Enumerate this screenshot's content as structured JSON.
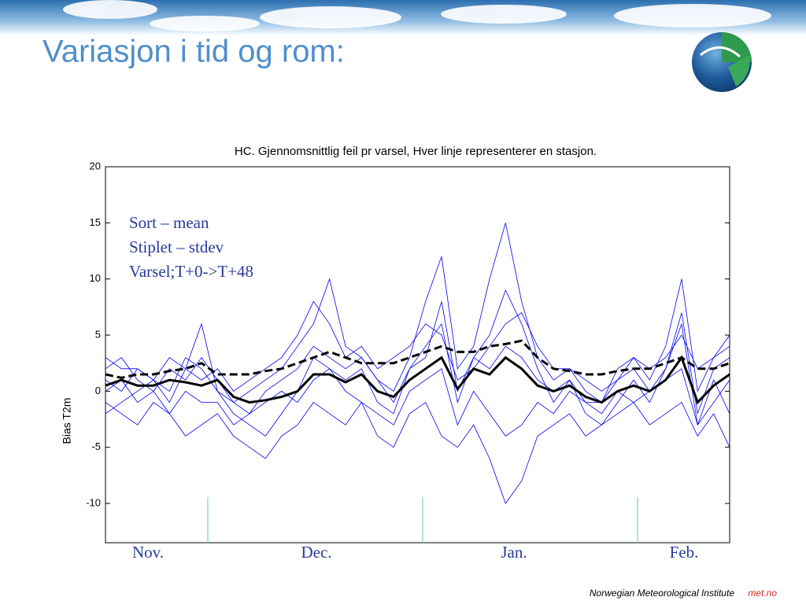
{
  "slide_title": "Variasjon i tid og rom:",
  "footer": {
    "institute": "Norwegian Meteorological Institute",
    "site": "met.no"
  },
  "chart_data": {
    "type": "line",
    "title": "HC. Gjennomsnittlig feil pr varsel, Hver linje representerer en stasjon.",
    "y_label": "Bias T2m",
    "annotations": [
      "Sort – mean",
      "Stiplet – stdev",
      "Varsel;T+0->T+48"
    ],
    "month_labels": [
      "Nov.",
      "Dec.",
      "Jan.",
      "Feb."
    ],
    "categories": [
      null,
      null,
      null,
      null,
      null,
      null,
      null,
      null,
      null,
      null,
      null,
      null,
      null,
      null,
      null,
      null,
      null,
      null,
      null,
      null,
      null,
      null,
      null,
      null,
      null,
      null,
      null,
      null,
      null,
      null,
      null,
      null,
      null,
      null,
      null,
      null,
      null,
      null,
      null,
      null
    ],
    "ylim": [
      -13.5,
      20
    ],
    "yticks": [
      -10,
      -5,
      0,
      5,
      10,
      15,
      20
    ],
    "series": [
      {
        "color": "#0000ee",
        "values": [
          -2,
          -1,
          0,
          1,
          -1,
          2,
          6,
          0,
          -2,
          -3,
          -4,
          -2,
          0,
          3,
          2,
          1,
          2,
          -1,
          -2,
          2,
          4,
          6,
          -1,
          3,
          5,
          9,
          6,
          2,
          -1,
          1,
          -2,
          -3,
          -1,
          1,
          -1,
          2,
          6,
          -3,
          1,
          -2
        ]
      },
      {
        "color": "#0000ee",
        "values": [
          2,
          3,
          1,
          0,
          2,
          1,
          3,
          1,
          -1,
          0,
          1,
          2,
          4,
          6,
          10,
          4,
          3,
          1,
          0,
          3,
          8,
          12,
          2,
          4,
          10,
          15,
          8,
          3,
          1,
          2,
          0,
          -1,
          2,
          3,
          1,
          4,
          10,
          0,
          3,
          4
        ]
      },
      {
        "color": "#0000ee",
        "values": [
          -1,
          -2,
          -3,
          -1,
          -2,
          -4,
          -3,
          -2,
          -4,
          -5,
          -6,
          -4,
          -3,
          -1,
          -2,
          -3,
          -1,
          -4,
          -5,
          -2,
          -1,
          -4,
          -5,
          -3,
          -6,
          -10,
          -8,
          -4,
          -3,
          -2,
          -4,
          -3,
          -2,
          -1,
          -3,
          -2,
          -1,
          -4,
          -2,
          -5
        ]
      },
      {
        "color": "#0000ee",
        "values": [
          3,
          2,
          2,
          1,
          3,
          2,
          1,
          2,
          0,
          1,
          2,
          3,
          5,
          8,
          6,
          3,
          4,
          2,
          3,
          4,
          6,
          5,
          1,
          2,
          4,
          6,
          7,
          4,
          2,
          2,
          1,
          0,
          1,
          3,
          2,
          3,
          5,
          2,
          3,
          5
        ]
      },
      {
        "color": "#0000ee",
        "values": [
          0,
          1,
          -1,
          0,
          -2,
          0,
          -1,
          -1,
          -3,
          -2,
          -1,
          0,
          -1,
          1,
          2,
          0,
          -1,
          -2,
          -3,
          0,
          1,
          2,
          -3,
          0,
          -2,
          -4,
          -3,
          -1,
          -2,
          0,
          -1,
          -2,
          0,
          -1,
          0,
          1,
          2,
          -3,
          -1,
          1
        ]
      },
      {
        "color": "#0000ee",
        "values": [
          1,
          0,
          2,
          1,
          0,
          3,
          2,
          0,
          -1,
          -2,
          0,
          1,
          2,
          4,
          3,
          2,
          3,
          1,
          -1,
          2,
          3,
          8,
          0,
          3,
          2,
          4,
          3,
          1,
          0,
          1,
          -1,
          -1,
          1,
          2,
          0,
          2,
          7,
          -2,
          2,
          3
        ]
      },
      {
        "color": "#000000",
        "style": "solid",
        "width": 3,
        "values": [
          0.5,
          1,
          0.5,
          0.5,
          1,
          0.8,
          0.5,
          1,
          -0.5,
          -1,
          -0.8,
          -0.5,
          0,
          1.5,
          1.5,
          0.8,
          1.5,
          0,
          -0.5,
          1,
          2,
          3,
          0.2,
          2,
          1.5,
          3,
          2,
          0.5,
          0,
          0.5,
          -0.5,
          -1,
          0,
          0.5,
          0,
          1,
          3,
          -1,
          0.5,
          1.5
        ]
      },
      {
        "color": "#000000",
        "style": "dashed",
        "width": 3,
        "values": [
          1.5,
          1.2,
          1.5,
          1.5,
          1.8,
          2,
          2.5,
          1.5,
          1.5,
          1.5,
          1.8,
          2,
          2.5,
          3,
          3.5,
          3,
          2.5,
          2.5,
          2.5,
          3,
          3.5,
          4,
          3.5,
          3.5,
          4,
          4.2,
          4.5,
          3,
          2,
          1.8,
          1.5,
          1.5,
          1.8,
          2,
          2,
          2.5,
          3,
          2,
          2,
          2.5
        ]
      }
    ]
  }
}
